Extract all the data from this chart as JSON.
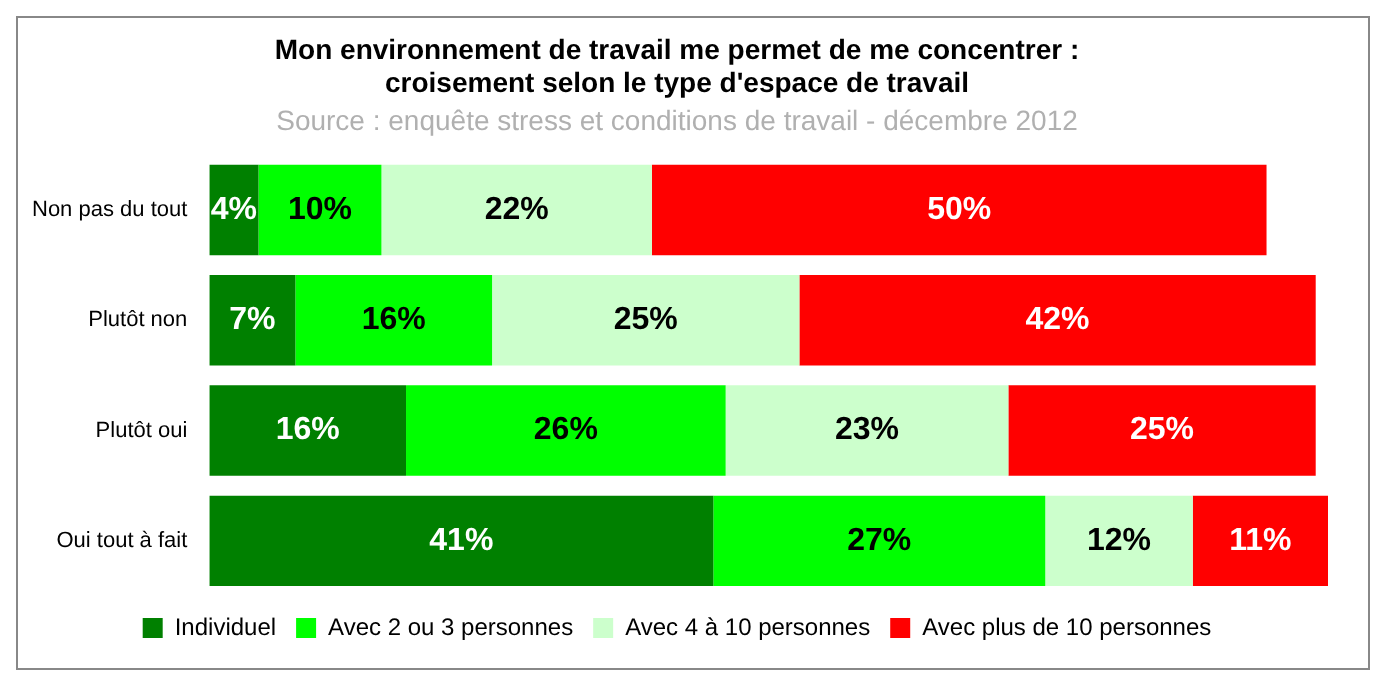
{
  "chart_data": {
    "type": "bar",
    "orientation": "horizontal",
    "stacked": true,
    "legend": "bottom",
    "title": "Mon environnement de travail me permet de me concentrer :\ncroisement selon le type d'espace de travail",
    "subtitle": "Source : enquête stress et conditions de travail - décembre 2012",
    "categories": [
      "Non pas du tout",
      "Plutôt non",
      "Plutôt oui",
      "Oui tout à fait"
    ],
    "series": [
      {
        "name": "Individuel",
        "color": "#008000",
        "values": [
          4,
          7,
          16,
          41
        ],
        "value_labels": [
          "4%",
          "7%",
          "16%",
          "41%"
        ]
      },
      {
        "name": "Avec 2 ou 3 personnes",
        "color": "#00ff00",
        "values": [
          10,
          16,
          26,
          27
        ],
        "value_labels": [
          "10%",
          "16%",
          "26%",
          "27%"
        ]
      },
      {
        "name": "Avec 4 à 10 personnes",
        "color": "#ccffcc",
        "values": [
          22,
          25,
          23,
          12
        ],
        "value_labels": [
          "22%",
          "25%",
          "23%",
          "12%"
        ]
      },
      {
        "name": "Avec plus de 10 personnes",
        "color": "#ff0000",
        "values": [
          50,
          42,
          25,
          11
        ],
        "value_labels": [
          "50%",
          "42%",
          "25%",
          "11%"
        ]
      }
    ]
  }
}
